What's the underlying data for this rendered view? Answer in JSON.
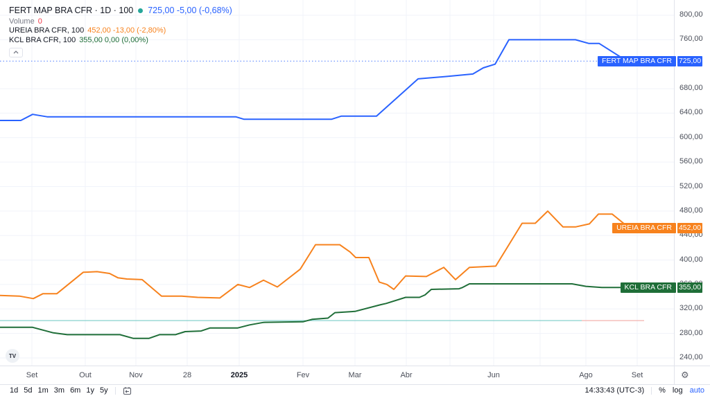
{
  "legend": {
    "title_full": "FERT MAP BRA CFR · 1D · 100",
    "main_quote": "725,00 -5,00 (-0,68%)",
    "volume_label": "Volume",
    "volume_value": "0",
    "rows": [
      {
        "label": "UREIA BRA CFR, 100",
        "quote": "452,00 -13,00 (-2,80%)"
      },
      {
        "label": "KCL BRA CFR, 100",
        "quote": "355,00 0,00 (0,00%)"
      }
    ]
  },
  "icons": {
    "watermark_text": "TV",
    "collapse": "chevron-up-icon",
    "go_to_date": "calendar-icon",
    "time_scale_settings": "gear-icon",
    "status_dot": "market-status-dot"
  },
  "colors": {
    "fert_map": "#2962ff",
    "ureia": "#f7821d",
    "kcl": "#1f6e38",
    "volume_value": "#f23645",
    "status_dot": "#26a69a",
    "auto_label": "#2962ff",
    "grid": "#f0f3fa",
    "border": "#e0e3eb"
  },
  "chart_data": {
    "type": "line",
    "x_unit": "px (time axis: Set 2024 → Set 2025)",
    "y_axis": {
      "min": 240,
      "max": 800,
      "step": 40,
      "ticks": [
        {
          "value": 800,
          "label": "800,00"
        },
        {
          "value": 760,
          "label": "760,00"
        },
        {
          "value": 680,
          "label": "680,00"
        },
        {
          "value": 640,
          "label": "640,00"
        },
        {
          "value": 600,
          "label": "600,00"
        },
        {
          "value": 560,
          "label": "560,00"
        },
        {
          "value": 520,
          "label": "520,00"
        },
        {
          "value": 480,
          "label": "480,00"
        },
        {
          "value": 440,
          "label": "440,00"
        },
        {
          "value": 400,
          "label": "400,00"
        },
        {
          "value": 360,
          "label": "360,00"
        },
        {
          "value": 320,
          "label": "320,00"
        },
        {
          "value": 280,
          "label": "280,00"
        },
        {
          "value": 240,
          "label": "240,00"
        }
      ]
    },
    "x_axis": {
      "ticks": [
        {
          "label": "Set",
          "x": 46
        },
        {
          "label": "Out",
          "x": 123
        },
        {
          "label": "Nov",
          "x": 196
        },
        {
          "label": "28",
          "x": 270
        },
        {
          "label": "2025",
          "x": 345,
          "bold": true
        },
        {
          "label": "Fev",
          "x": 437
        },
        {
          "label": "Mar",
          "x": 512
        },
        {
          "label": "Abr",
          "x": 586
        },
        {
          "label": "Jun",
          "x": 712
        },
        {
          "label": "Ago",
          "x": 845
        },
        {
          "label": "Set",
          "x": 919
        }
      ],
      "grid_x": [
        46,
        123,
        196,
        270,
        345,
        437,
        512,
        586,
        649,
        712,
        779,
        845,
        919
      ]
    },
    "series": [
      {
        "id": "fert-map-bra-cfr",
        "name": "FERT MAP BRA CFR",
        "color": "#2962ff",
        "tag_label": "FERT MAP BRA CFR",
        "tag_price": "725,00",
        "last_value": 725,
        "points": [
          [
            0,
            628
          ],
          [
            30,
            628
          ],
          [
            47,
            638
          ],
          [
            68,
            634
          ],
          [
            340,
            634
          ],
          [
            352,
            630
          ],
          [
            478,
            630
          ],
          [
            492,
            635
          ],
          [
            543,
            635
          ],
          [
            603,
            696
          ],
          [
            645,
            700
          ],
          [
            682,
            704
          ],
          [
            697,
            714
          ],
          [
            714,
            720
          ],
          [
            734,
            760
          ],
          [
            830,
            760
          ],
          [
            849,
            754
          ],
          [
            864,
            754
          ],
          [
            896,
            731
          ],
          [
            920,
            725
          ]
        ]
      },
      {
        "id": "ureia-bra-cfr",
        "name": "UREIA BRA CFR",
        "color": "#f7821d",
        "tag_label": "UREIA BRA CFR",
        "tag_price": "452,00",
        "last_value": 452,
        "points": [
          [
            0,
            342
          ],
          [
            28,
            341
          ],
          [
            48,
            337
          ],
          [
            62,
            345
          ],
          [
            82,
            345
          ],
          [
            120,
            380
          ],
          [
            140,
            381
          ],
          [
            158,
            378
          ],
          [
            170,
            371
          ],
          [
            183,
            369
          ],
          [
            205,
            368
          ],
          [
            233,
            341
          ],
          [
            262,
            341
          ],
          [
            285,
            339
          ],
          [
            317,
            338
          ],
          [
            343,
            360
          ],
          [
            360,
            355
          ],
          [
            380,
            367
          ],
          [
            400,
            356
          ],
          [
            433,
            385
          ],
          [
            455,
            425
          ],
          [
            490,
            425
          ],
          [
            505,
            413
          ],
          [
            513,
            404
          ],
          [
            532,
            404
          ],
          [
            547,
            364
          ],
          [
            558,
            360
          ],
          [
            568,
            352
          ],
          [
            585,
            374
          ],
          [
            615,
            373
          ],
          [
            640,
            388
          ],
          [
            657,
            368
          ],
          [
            677,
            388
          ],
          [
            715,
            390
          ],
          [
            753,
            460
          ],
          [
            772,
            460
          ],
          [
            790,
            480
          ],
          [
            812,
            454
          ],
          [
            830,
            454
          ],
          [
            850,
            459
          ],
          [
            863,
            475
          ],
          [
            883,
            475
          ],
          [
            908,
            452
          ],
          [
            920,
            452
          ]
        ]
      },
      {
        "id": "kcl-bra-cfr",
        "name": "KCL BRA CFR",
        "color": "#1f6e38",
        "tag_label": "KCL BRA CFR",
        "tag_price": "355,00",
        "last_value": 355,
        "points": [
          [
            0,
            290
          ],
          [
            47,
            290
          ],
          [
            77,
            281
          ],
          [
            97,
            278
          ],
          [
            173,
            278
          ],
          [
            192,
            272
          ],
          [
            215,
            272
          ],
          [
            230,
            278
          ],
          [
            253,
            278
          ],
          [
            267,
            283
          ],
          [
            290,
            284
          ],
          [
            303,
            289
          ],
          [
            343,
            289
          ],
          [
            360,
            294
          ],
          [
            380,
            298
          ],
          [
            437,
            299
          ],
          [
            450,
            303
          ],
          [
            473,
            305
          ],
          [
            483,
            314
          ],
          [
            512,
            316
          ],
          [
            549,
            327
          ],
          [
            557,
            329
          ],
          [
            585,
            339
          ],
          [
            605,
            339
          ],
          [
            613,
            343
          ],
          [
            622,
            352
          ],
          [
            662,
            353
          ],
          [
            667,
            355
          ],
          [
            677,
            361
          ],
          [
            825,
            361
          ],
          [
            845,
            357
          ],
          [
            868,
            355
          ],
          [
            920,
            355
          ]
        ]
      }
    ],
    "reference_lines": [
      {
        "value": 301,
        "x1": 0,
        "x2": 839,
        "color": "#7accc8"
      },
      {
        "value": 301,
        "x1": 839,
        "x2": 929,
        "color": "#f2a9a5"
      }
    ],
    "last_price_line": {
      "value": 725,
      "color": "#2962ff",
      "style": "dotted"
    },
    "legend_position": "top-left",
    "grid": true
  },
  "bottom_bar": {
    "ranges": [
      "1d",
      "5d",
      "1m",
      "3m",
      "6m",
      "1y",
      "5y"
    ],
    "clock": "14:33:43 (UTC-3)",
    "percent_label": "%",
    "log_label": "log",
    "auto_label": "auto"
  }
}
